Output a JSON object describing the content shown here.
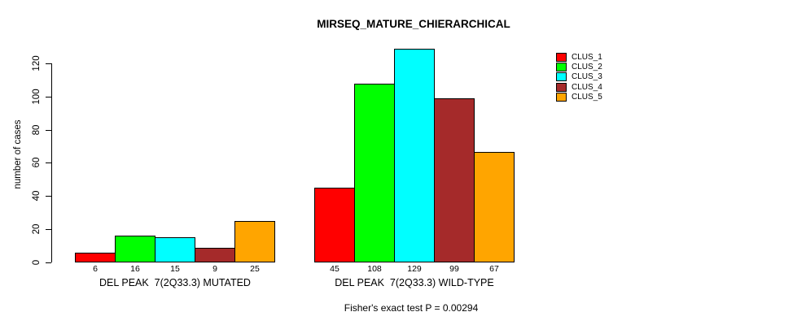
{
  "chart_data": {
    "type": "bar",
    "title": "MIRSEQ_MATURE_CHIERARCHICAL",
    "ylabel": "number of cases",
    "xlabel": "",
    "ylim": [
      0,
      130
    ],
    "yticks": [
      0,
      20,
      40,
      60,
      80,
      100,
      120
    ],
    "grid": false,
    "legend_position": "top-right",
    "categories": [
      "DEL PEAK  7(2Q33.3) MUTATED",
      "DEL PEAK  7(2Q33.3) WILD-TYPE"
    ],
    "series": [
      {
        "name": "CLUS_1",
        "color": "#FF0000",
        "values": [
          6,
          45
        ]
      },
      {
        "name": "CLUS_2",
        "color": "#00FF00",
        "values": [
          16,
          108
        ]
      },
      {
        "name": "CLUS_3",
        "color": "#00FFFF",
        "values": [
          15,
          129
        ]
      },
      {
        "name": "CLUS_4",
        "color": "#A52A2A",
        "values": [
          9,
          99
        ]
      },
      {
        "name": "CLUS_5",
        "color": "#FFA500",
        "values": [
          25,
          67
        ]
      }
    ],
    "bar_value_labels": [
      [
        6,
        16,
        15,
        9,
        25
      ],
      [
        45,
        108,
        129,
        99,
        67
      ]
    ],
    "annotation": "Fisher's exact test P = 0.00294"
  },
  "colors": {
    "axis": "#000000",
    "background": "#FFFFFF"
  }
}
